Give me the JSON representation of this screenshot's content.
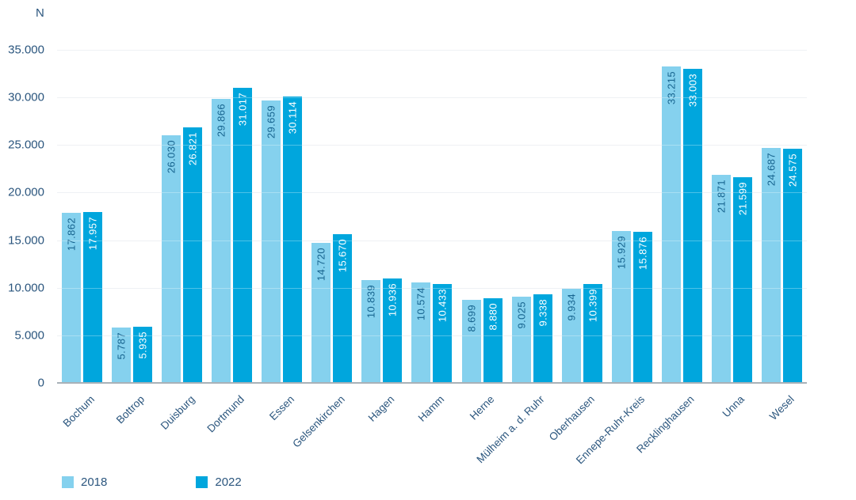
{
  "chart_data": {
    "type": "bar",
    "unit_label": "N",
    "categories": [
      "Bochum",
      "Bottrop",
      "Duisburg",
      "Dortmund",
      "Essen",
      "Gelsenkirchen",
      "Hagen",
      "Hamm",
      "Herne",
      "Mülheim a. d. Ruhr",
      "Oberhausen",
      "Ennepe-Ruhr-Kreis",
      "Recklinghausen",
      "Unna",
      "Wesel"
    ],
    "series": [
      {
        "name": "2018",
        "color": "#85D1EE",
        "value_label_color": "#17648F",
        "values": [
          17862,
          5787,
          26030,
          29866,
          29659,
          14720,
          10839,
          10574,
          8699,
          9025,
          9934,
          15929,
          33215,
          21871,
          24687
        ]
      },
      {
        "name": "2022",
        "color": "#00A6DD",
        "value_label_color": "#FFFFFF",
        "values": [
          17957,
          5935,
          26821,
          31017,
          30114,
          15670,
          10936,
          10433,
          8880,
          9338,
          10399,
          15876,
          33003,
          21599,
          24575
        ]
      }
    ],
    "ylim": [
      0,
      35000
    ],
    "y_ticks": [
      0,
      5000,
      10000,
      15000,
      20000,
      25000,
      30000,
      35000
    ],
    "number_format": "de-thousands-dot",
    "grid": true,
    "legend_position": "bottom-left",
    "axis_text_color": "#2B567E",
    "gridline_color": "#E7EBEF",
    "baseline_color": "#A8B1B8"
  }
}
